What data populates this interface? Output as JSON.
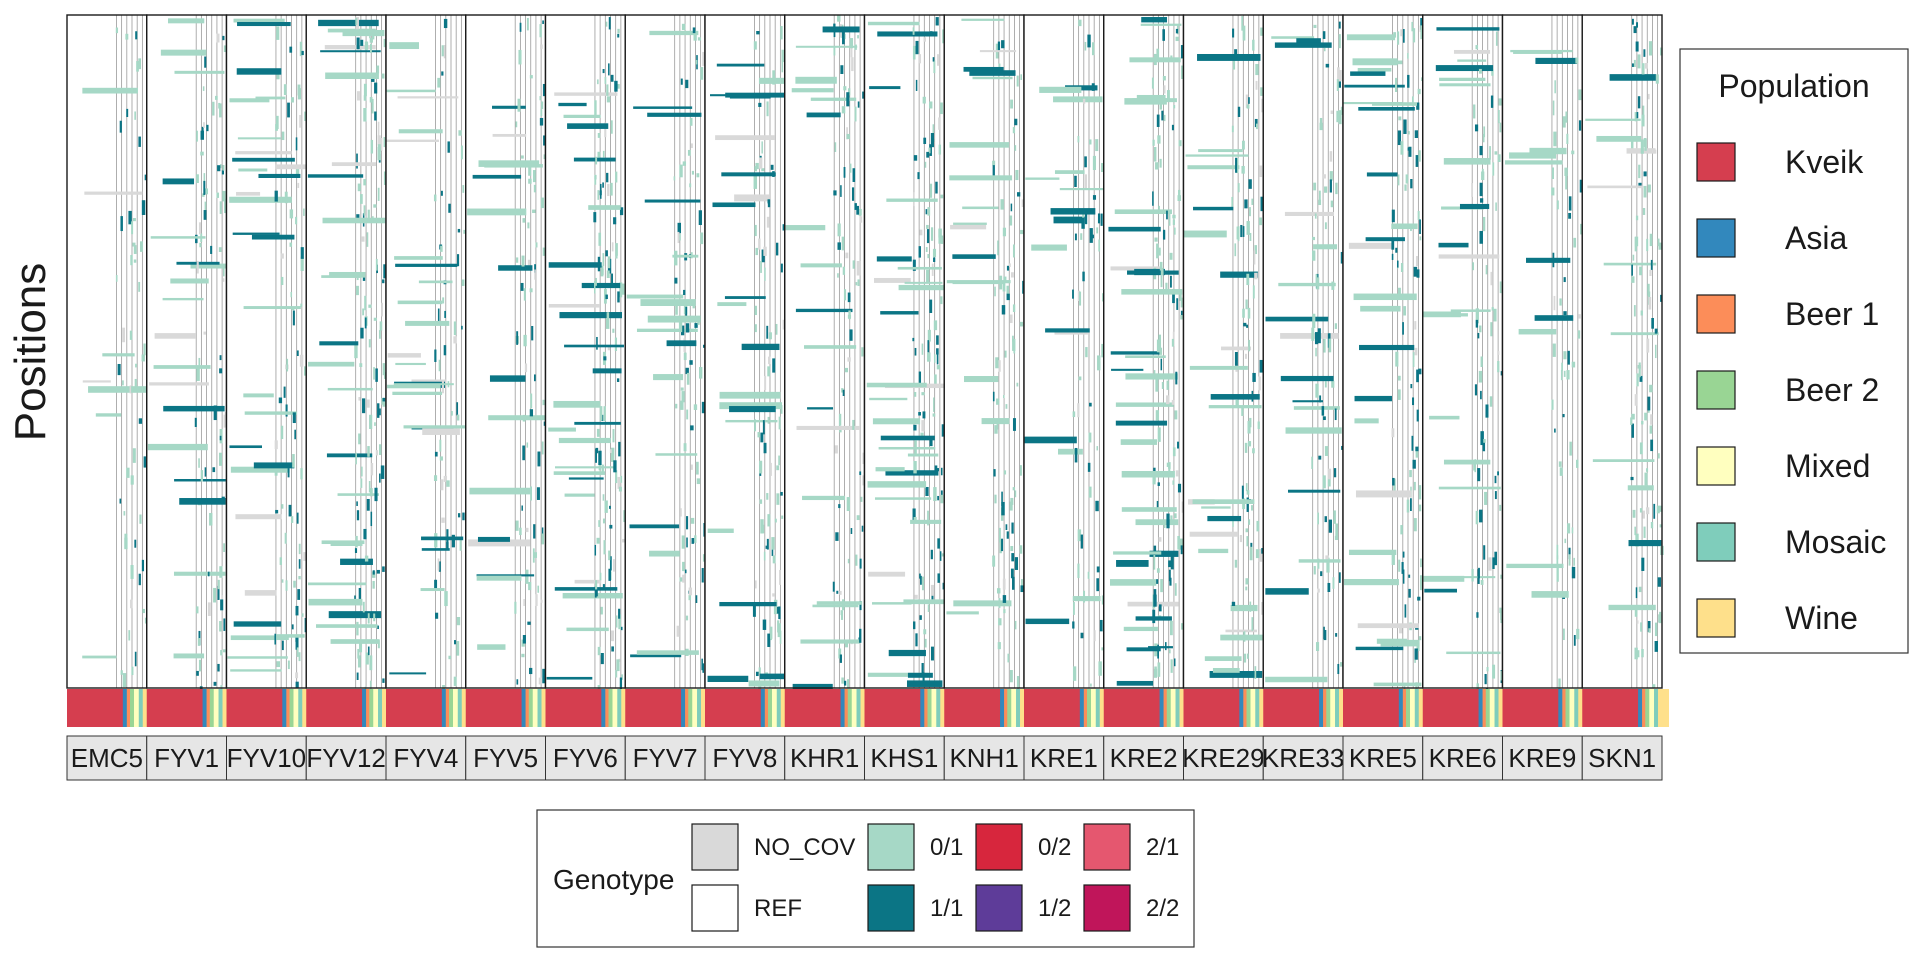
{
  "chart_data": {
    "type": "heatmap",
    "ylabel": "Positions",
    "facets": [
      "EMC5",
      "FYV1",
      "FYV10",
      "FYV12",
      "FYV4",
      "FYV5",
      "FYV6",
      "FYV7",
      "FYV8",
      "KHR1",
      "KHS1",
      "KNH1",
      "KRE1",
      "KRE2",
      "KRE29",
      "KRE33",
      "KRE5",
      "KRE6",
      "KRE9",
      "SKN1"
    ],
    "population_legend": {
      "title": "Population",
      "entries": [
        {
          "label": "Kveik",
          "color": "#d53e4f"
        },
        {
          "label": "Asia",
          "color": "#3288bd"
        },
        {
          "label": "Beer 1",
          "color": "#fc8d59"
        },
        {
          "label": "Beer 2",
          "color": "#99d594"
        },
        {
          "label": "Mixed",
          "color": "#ffffbf"
        },
        {
          "label": "Mosaic",
          "color": "#7fcdbb"
        },
        {
          "label": "Wine",
          "color": "#fee08b"
        }
      ]
    },
    "genotype_legend": {
      "title": "Genotype",
      "entries": [
        {
          "label": "NO_COV",
          "color": "#d9d9d9"
        },
        {
          "label": "REF",
          "color": "#ffffff"
        },
        {
          "label": "0/1",
          "color": "#a6d8c6"
        },
        {
          "label": "1/1",
          "color": "#0b7585"
        },
        {
          "label": "0/2",
          "color": "#d7263d"
        },
        {
          "label": "1/2",
          "color": "#5e3c99"
        },
        {
          "label": "2/1",
          "color": "#e5576f"
        },
        {
          "label": "2/2",
          "color": "#c0155a"
        }
      ]
    }
  }
}
